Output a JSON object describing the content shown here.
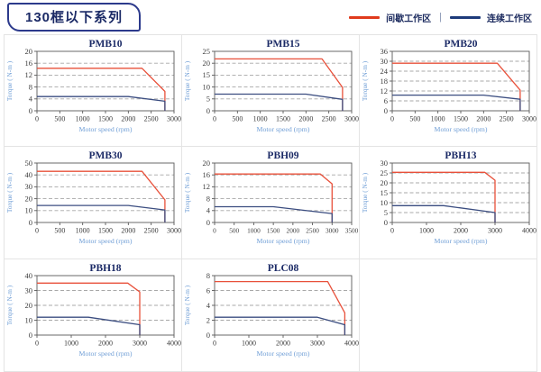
{
  "header": {
    "title": "130框以下系列",
    "legend_separator": "|",
    "legend": [
      {
        "name": "intermittent-zone",
        "label": "间歇工作区",
        "color": "#e03a1c"
      },
      {
        "name": "continuous-zone",
        "label": "连续工作区",
        "color": "#1e3b7a"
      }
    ]
  },
  "colors": {
    "chart_red": "#e8503a",
    "chart_blue": "#3b4d80",
    "title_navy": "#1b2a66",
    "tick_label": "#3d3d3d",
    "axis_label_blue": "#6f9ed6",
    "gridline": "#a8a8a8",
    "plot_border": "#5a5a5a",
    "cell_border": "#e4e4e4"
  },
  "chart_data": [
    {
      "type": "line",
      "title": "PMB10",
      "xlabel": "Motor speed (rpm)",
      "ylabel": "Torque ( N-m )",
      "xlim": [
        0,
        3000
      ],
      "ylim": [
        0,
        20
      ],
      "xticks": [
        0,
        500,
        1000,
        1500,
        2000,
        2500,
        3000
      ],
      "yticks": [
        0,
        4,
        8,
        12,
        16,
        20
      ],
      "grid": "dashed-horizontal",
      "legend_position": "none",
      "series": [
        {
          "name": "间歇工作区",
          "color": "#e8503a",
          "points": [
            [
              0,
              14.3
            ],
            [
              2300,
              14.3
            ],
            [
              2800,
              6.5
            ],
            [
              2800,
              0
            ]
          ]
        },
        {
          "name": "连续工作区",
          "color": "#3b4d80",
          "points": [
            [
              0,
              4.8
            ],
            [
              2000,
              4.8
            ],
            [
              2800,
              3.2
            ],
            [
              2800,
              0
            ]
          ]
        }
      ]
    },
    {
      "type": "line",
      "title": "PMB15",
      "xlabel": "Motor speed (rpm)",
      "ylabel": "Torque ( N-m )",
      "xlim": [
        0,
        3000
      ],
      "ylim": [
        0,
        25
      ],
      "xticks": [
        0,
        500,
        1000,
        1500,
        2000,
        2500,
        3000
      ],
      "yticks": [
        0,
        5,
        10,
        15,
        20,
        25
      ],
      "grid": "dashed-horizontal",
      "legend_position": "none",
      "series": [
        {
          "name": "间歇工作区",
          "color": "#e8503a",
          "points": [
            [
              0,
              21.8
            ],
            [
              2350,
              21.8
            ],
            [
              2800,
              9.8
            ],
            [
              2800,
              0
            ]
          ]
        },
        {
          "name": "连续工作区",
          "color": "#3b4d80",
          "points": [
            [
              0,
              7
            ],
            [
              2000,
              7
            ],
            [
              2800,
              4.8
            ],
            [
              2800,
              0
            ]
          ]
        }
      ]
    },
    {
      "type": "line",
      "title": "PMB20",
      "xlabel": "Motor speed (rpm)",
      "ylabel": "Torque ( N-m )",
      "xlim": [
        0,
        3000
      ],
      "ylim": [
        0,
        36
      ],
      "xticks": [
        0,
        500,
        1000,
        1500,
        2000,
        2500,
        3000
      ],
      "yticks": [
        0,
        6,
        12,
        18,
        24,
        30,
        36
      ],
      "grid": "dashed-horizontal",
      "legend_position": "none",
      "series": [
        {
          "name": "间歇工作区",
          "color": "#e8503a",
          "points": [
            [
              0,
              28.8
            ],
            [
              2300,
              28.8
            ],
            [
              2800,
              12.5
            ],
            [
              2800,
              0
            ]
          ]
        },
        {
          "name": "连续工作区",
          "color": "#3b4d80",
          "points": [
            [
              0,
              9.5
            ],
            [
              2000,
              9.5
            ],
            [
              2800,
              7
            ],
            [
              2800,
              0
            ]
          ]
        }
      ]
    },
    {
      "type": "line",
      "title": "PMB30",
      "xlabel": "Motor speed (rpm)",
      "ylabel": "Torque ( N-m )",
      "xlim": [
        0,
        3000
      ],
      "ylim": [
        0,
        50
      ],
      "xticks": [
        0,
        500,
        1000,
        1500,
        2000,
        2500,
        3000
      ],
      "yticks": [
        0,
        10,
        20,
        30,
        40,
        50
      ],
      "grid": "dashed-horizontal",
      "legend_position": "none",
      "series": [
        {
          "name": "间歇工作区",
          "color": "#e8503a",
          "points": [
            [
              0,
              43
            ],
            [
              2300,
              43
            ],
            [
              2800,
              19
            ],
            [
              2800,
              0
            ]
          ]
        },
        {
          "name": "连续工作区",
          "color": "#3b4d80",
          "points": [
            [
              0,
              14.3
            ],
            [
              2000,
              14.3
            ],
            [
              2800,
              10.5
            ],
            [
              2800,
              0
            ]
          ]
        }
      ]
    },
    {
      "type": "line",
      "title": "PBH09",
      "xlabel": "Motor speed (rpm)",
      "ylabel": "Torque ( N-m )",
      "xlim": [
        0,
        3500
      ],
      "ylim": [
        0,
        20
      ],
      "xticks": [
        0,
        500,
        1000,
        1500,
        2000,
        2500,
        3000,
        3500
      ],
      "yticks": [
        0,
        4,
        8,
        12,
        16,
        20
      ],
      "grid": "dashed-horizontal",
      "legend_position": "none",
      "series": [
        {
          "name": "间歇工作区",
          "color": "#e8503a",
          "points": [
            [
              0,
              16.3
            ],
            [
              2700,
              16.3
            ],
            [
              3000,
              13
            ],
            [
              3000,
              0
            ]
          ]
        },
        {
          "name": "连续工作区",
          "color": "#3b4d80",
          "points": [
            [
              0,
              5.3
            ],
            [
              1500,
              5.3
            ],
            [
              3000,
              3
            ],
            [
              3000,
              0
            ]
          ]
        }
      ]
    },
    {
      "type": "line",
      "title": "PBH13",
      "xlabel": "Motor speed (rpm)",
      "ylabel": "Torque ( N-m )",
      "xlim": [
        0,
        4000
      ],
      "ylim": [
        0,
        30
      ],
      "xticks": [
        0,
        1000,
        2000,
        3000,
        4000
      ],
      "yticks": [
        0,
        5,
        10,
        15,
        20,
        25,
        30
      ],
      "grid": "dashed-horizontal",
      "legend_position": "none",
      "series": [
        {
          "name": "间歇工作区",
          "color": "#e8503a",
          "points": [
            [
              0,
              25.3
            ],
            [
              2700,
              25.3
            ],
            [
              3000,
              21.3
            ],
            [
              3000,
              0
            ]
          ]
        },
        {
          "name": "连续工作区",
          "color": "#3b4d80",
          "points": [
            [
              0,
              8.5
            ],
            [
              1500,
              8.5
            ],
            [
              3000,
              5
            ],
            [
              3000,
              0
            ]
          ]
        }
      ]
    },
    {
      "type": "line",
      "title": "PBH18",
      "xlabel": "Motor speed (rpm)",
      "ylabel": "Torque ( N-m )",
      "xlim": [
        0,
        4000
      ],
      "ylim": [
        0,
        40
      ],
      "xticks": [
        0,
        1000,
        2000,
        3000,
        4000
      ],
      "yticks": [
        0,
        10,
        20,
        30,
        40
      ],
      "grid": "dashed-horizontal",
      "legend_position": "none",
      "series": [
        {
          "name": "间歇工作区",
          "color": "#e8503a",
          "points": [
            [
              0,
              35
            ],
            [
              2650,
              35
            ],
            [
              3000,
              29
            ],
            [
              3000,
              0
            ]
          ]
        },
        {
          "name": "连续工作区",
          "color": "#3b4d80",
          "points": [
            [
              0,
              12
            ],
            [
              1500,
              12
            ],
            [
              3000,
              7
            ],
            [
              3000,
              0
            ]
          ]
        }
      ]
    },
    {
      "type": "line",
      "title": "PLC08",
      "xlabel": "Motor speed (rpm)",
      "ylabel": "Torque ( N-m )",
      "xlim": [
        0,
        4000
      ],
      "ylim": [
        0,
        8
      ],
      "xticks": [
        0,
        1000,
        2000,
        3000,
        4000
      ],
      "yticks": [
        0,
        2,
        4,
        6,
        8
      ],
      "grid": "dashed-horizontal",
      "legend_position": "none",
      "series": [
        {
          "name": "间歇工作区",
          "color": "#e8503a",
          "points": [
            [
              0,
              7.2
            ],
            [
              3300,
              7.2
            ],
            [
              3800,
              3
            ],
            [
              3800,
              0
            ]
          ]
        },
        {
          "name": "连续工作区",
          "color": "#3b4d80",
          "points": [
            [
              0,
              2.4
            ],
            [
              3000,
              2.4
            ],
            [
              3800,
              1.4
            ],
            [
              3800,
              0
            ]
          ]
        }
      ]
    }
  ]
}
